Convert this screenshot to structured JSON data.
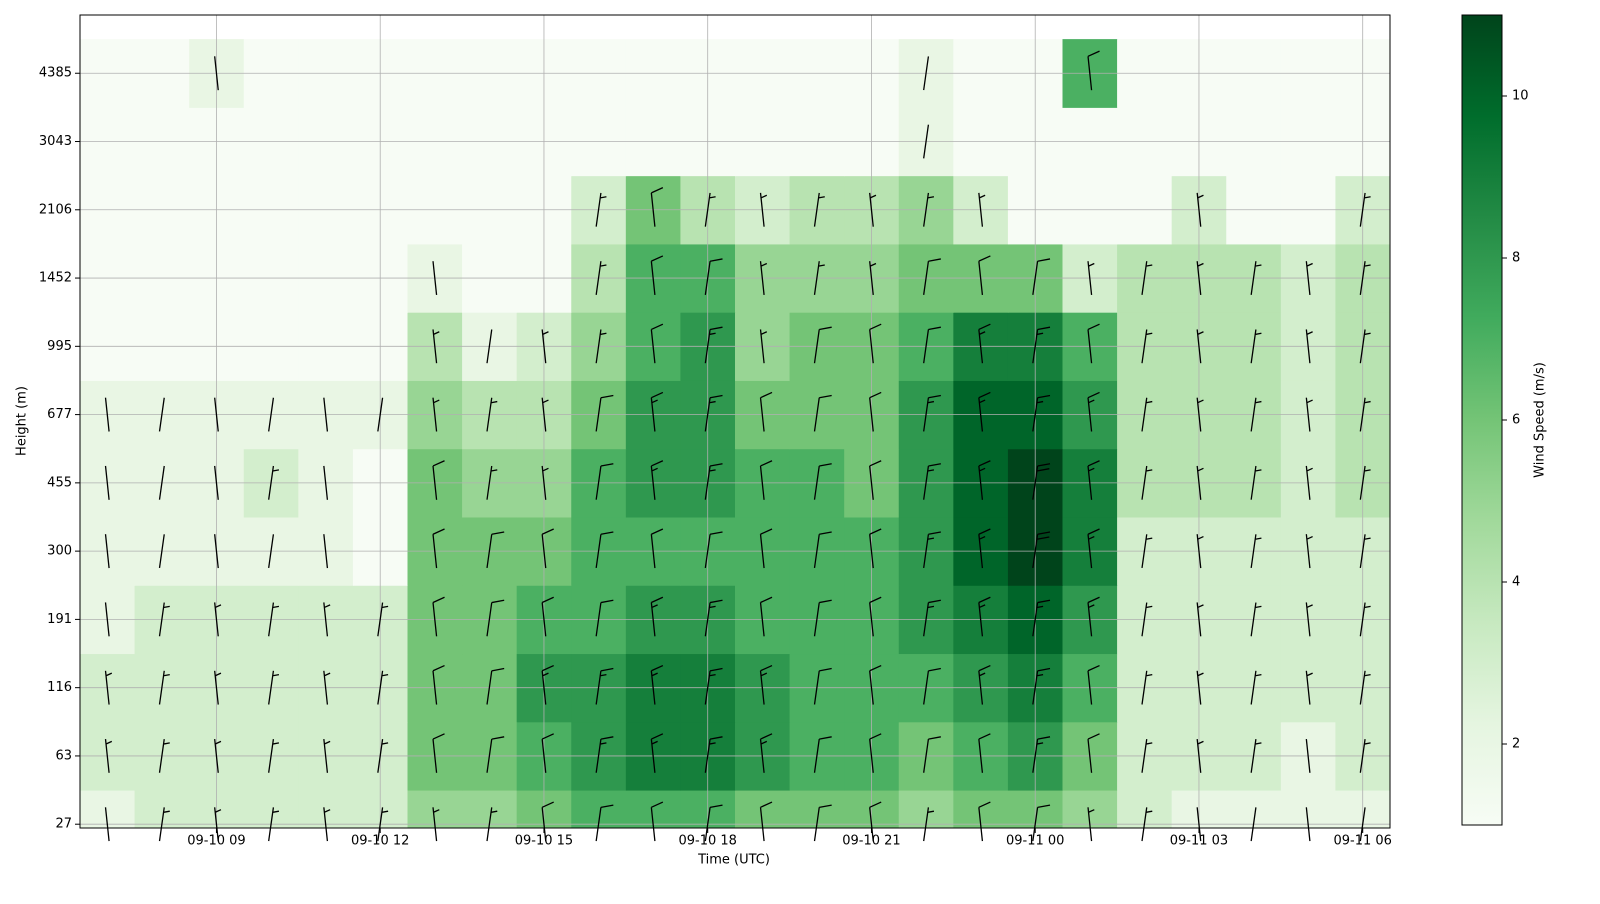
{
  "chart_data": {
    "type": "heatmap",
    "x": [
      "09-10 07",
      "09-10 08",
      "09-10 09",
      "09-10 10",
      "09-10 11",
      "09-10 12",
      "09-10 13",
      "09-10 14",
      "09-10 15",
      "09-10 16",
      "09-10 17",
      "09-10 18",
      "09-10 19",
      "09-10 20",
      "09-10 21",
      "09-10 22",
      "09-10 23",
      "09-11 00",
      "09-11 01",
      "09-11 02",
      "09-11 03",
      "09-11 04",
      "09-11 05",
      "09-11 06"
    ],
    "y": [
      27,
      63,
      116,
      191,
      300,
      455,
      677,
      995,
      1452,
      2106,
      3043,
      4385
    ],
    "values": [
      [
        2,
        3,
        3,
        3,
        3,
        3,
        5,
        5,
        6,
        7,
        7,
        7,
        6,
        6,
        6,
        5,
        6,
        6,
        5,
        3,
        2,
        2,
        2,
        2
      ],
      [
        3,
        3,
        3,
        3,
        3,
        3,
        6,
        6,
        7,
        8,
        9,
        9,
        8,
        7,
        7,
        6,
        7,
        8,
        6,
        3,
        3,
        3,
        2,
        3
      ],
      [
        3,
        3,
        3,
        3,
        3,
        3,
        6,
        6,
        8,
        8,
        9,
        9,
        8,
        7,
        7,
        7,
        8,
        9,
        7,
        3,
        3,
        3,
        3,
        3
      ],
      [
        2,
        3,
        3,
        3,
        3,
        3,
        6,
        6,
        7,
        7,
        8,
        8,
        7,
        7,
        7,
        8,
        9,
        10,
        8,
        3,
        3,
        3,
        3,
        3
      ],
      [
        2,
        2,
        2,
        2,
        2,
        1,
        6,
        6,
        6,
        7,
        7,
        7,
        7,
        7,
        7,
        8,
        10,
        11,
        9,
        3,
        3,
        3,
        3,
        3
      ],
      [
        2,
        2,
        2,
        3,
        2,
        1,
        6,
        5,
        5,
        7,
        8,
        8,
        7,
        7,
        6,
        8,
        10,
        11,
        9,
        4,
        4,
        4,
        3,
        4
      ],
      [
        2,
        2,
        2,
        2,
        2,
        2,
        5,
        4,
        4,
        6,
        8,
        8,
        6,
        6,
        6,
        8,
        10,
        10,
        8,
        4,
        4,
        4,
        3,
        4
      ],
      [
        1,
        1,
        1,
        1,
        1,
        1,
        4,
        2,
        3,
        5,
        7,
        8,
        5,
        6,
        6,
        7,
        9,
        9,
        7,
        4,
        4,
        4,
        3,
        4
      ],
      [
        1,
        1,
        1,
        1,
        1,
        1,
        2,
        1,
        1,
        4,
        7,
        7,
        5,
        5,
        5,
        6,
        6,
        6,
        3,
        4,
        4,
        4,
        3,
        4
      ],
      [
        1,
        1,
        1,
        1,
        1,
        1,
        1,
        1,
        1,
        3,
        6,
        4,
        3,
        4,
        4,
        5,
        3,
        1,
        1,
        1,
        3,
        1,
        1,
        3
      ],
      [
        1,
        1,
        1,
        1,
        1,
        1,
        1,
        1,
        1,
        1,
        1,
        1,
        1,
        1,
        1,
        2,
        1,
        1,
        1,
        1,
        1,
        1,
        1,
        1
      ],
      [
        1,
        1,
        2,
        1,
        1,
        1,
        1,
        1,
        1,
        1,
        1,
        1,
        1,
        1,
        1,
        2,
        1,
        1,
        7,
        1,
        1,
        1,
        1,
        1
      ]
    ],
    "colormap": [
      "#f7fcf5",
      "#e5f5e0",
      "#c7e9c0",
      "#a1d99b",
      "#74c476",
      "#41ab5d",
      "#238b45",
      "#006d2c",
      "#00441b"
    ],
    "clim": [
      1,
      11
    ],
    "cticks": [
      2,
      4,
      6,
      8,
      10
    ],
    "colorbar_label": "Wind Speed (m/s)",
    "xticks": [
      "09-10 09",
      "09-10 12",
      "09-10 15",
      "09-10 18",
      "09-10 21",
      "09-11 00",
      "09-11 03",
      "09-11 06"
    ],
    "yticks": [
      27,
      63,
      116,
      191,
      300,
      455,
      677,
      995,
      1452,
      2106,
      3043,
      4385
    ],
    "ylim": [
      25,
      5530
    ],
    "xlabel": "Time (UTC)",
    "ylabel": "Height (m)",
    "grid": true
  }
}
